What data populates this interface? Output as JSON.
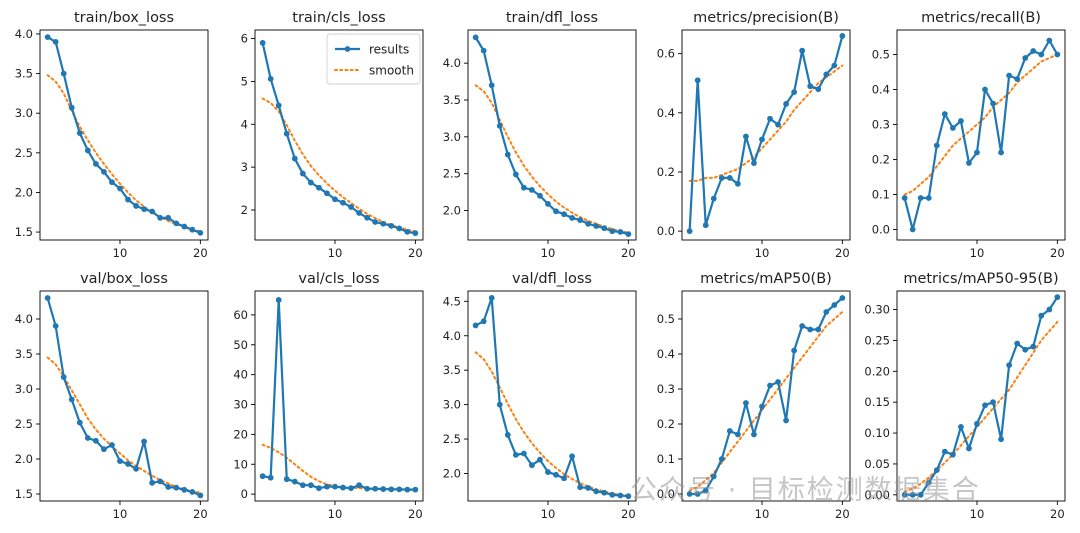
{
  "colors": {
    "results": "#1f77b4",
    "smooth": "#ff7f0e",
    "axis": "#000000",
    "background": "#ffffff"
  },
  "watermark": "公众号 · 目标检测数据集合",
  "chart_data": [
    {
      "type": "line",
      "title": "train/box_loss",
      "ylim": [
        1.4,
        4.05
      ],
      "yticks": [
        1.5,
        2.0,
        2.5,
        3.0,
        3.5,
        4.0
      ],
      "xticks": [
        10,
        20
      ],
      "xlim": [
        0.05,
        20.95
      ],
      "legend": null,
      "series": [
        {
          "name": "results",
          "x": [
            1,
            2,
            3,
            4,
            5,
            6,
            7,
            8,
            9,
            10,
            11,
            12,
            13,
            14,
            15,
            16,
            17,
            18,
            19,
            20
          ],
          "values": [
            3.96,
            3.9,
            3.5,
            3.07,
            2.75,
            2.53,
            2.36,
            2.26,
            2.13,
            2.05,
            1.91,
            1.83,
            1.79,
            1.76,
            1.68,
            1.68,
            1.61,
            1.57,
            1.53,
            1.49
          ]
        },
        {
          "name": "smooth",
          "x": [
            1,
            2,
            3,
            4,
            5,
            6,
            7,
            8,
            9,
            10,
            11,
            12,
            13,
            14,
            15,
            16,
            17,
            18,
            19,
            20
          ],
          "values": [
            3.48,
            3.4,
            3.25,
            3.03,
            2.83,
            2.66,
            2.5,
            2.36,
            2.23,
            2.11,
            2.0,
            1.9,
            1.82,
            1.75,
            1.69,
            1.64,
            1.6,
            1.56,
            1.53,
            1.51
          ]
        }
      ]
    },
    {
      "type": "line",
      "title": "train/cls_loss",
      "ylim": [
        1.3,
        6.2
      ],
      "yticks": [
        2,
        3,
        4,
        5,
        6
      ],
      "xticks": [
        10,
        20
      ],
      "xlim": [
        0.05,
        20.95
      ],
      "legend": {
        "placement": "upper right",
        "entries": [
          "results",
          "smooth"
        ]
      },
      "series": [
        {
          "name": "results",
          "x": [
            1,
            2,
            3,
            4,
            5,
            6,
            7,
            8,
            9,
            10,
            11,
            12,
            13,
            14,
            15,
            16,
            17,
            18,
            19,
            20
          ],
          "values": [
            5.9,
            5.06,
            4.44,
            3.78,
            3.2,
            2.85,
            2.64,
            2.52,
            2.39,
            2.25,
            2.17,
            2.07,
            1.93,
            1.82,
            1.72,
            1.68,
            1.63,
            1.57,
            1.49,
            1.46
          ]
        },
        {
          "name": "smooth",
          "x": [
            1,
            2,
            3,
            4,
            5,
            6,
            7,
            8,
            9,
            10,
            11,
            12,
            13,
            14,
            15,
            16,
            17,
            18,
            19,
            20
          ],
          "values": [
            4.6,
            4.5,
            4.3,
            3.98,
            3.62,
            3.3,
            3.03,
            2.81,
            2.62,
            2.45,
            2.3,
            2.16,
            2.03,
            1.91,
            1.81,
            1.72,
            1.65,
            1.59,
            1.54,
            1.5
          ]
        }
      ]
    },
    {
      "type": "line",
      "title": "train/dfl_loss",
      "ylim": [
        1.6,
        4.45
      ],
      "yticks": [
        2.0,
        2.5,
        3.0,
        3.5,
        4.0
      ],
      "xticks": [
        10,
        20
      ],
      "xlim": [
        0.05,
        20.95
      ],
      "legend": null,
      "series": [
        {
          "name": "results",
          "x": [
            1,
            2,
            3,
            4,
            5,
            6,
            7,
            8,
            9,
            10,
            11,
            12,
            13,
            14,
            15,
            16,
            17,
            18,
            19,
            20
          ],
          "values": [
            4.35,
            4.17,
            3.7,
            3.15,
            2.76,
            2.49,
            2.31,
            2.28,
            2.2,
            2.09,
            1.99,
            1.95,
            1.9,
            1.87,
            1.82,
            1.79,
            1.76,
            1.72,
            1.71,
            1.68
          ]
        },
        {
          "name": "smooth",
          "x": [
            1,
            2,
            3,
            4,
            5,
            6,
            7,
            8,
            9,
            10,
            11,
            12,
            13,
            14,
            15,
            16,
            17,
            18,
            19,
            20
          ],
          "values": [
            3.7,
            3.62,
            3.46,
            3.23,
            3.0,
            2.79,
            2.61,
            2.46,
            2.33,
            2.22,
            2.12,
            2.04,
            1.97,
            1.91,
            1.86,
            1.82,
            1.78,
            1.75,
            1.72,
            1.7
          ]
        }
      ]
    },
    {
      "type": "line",
      "title": "metrics/precision(B)",
      "ylim": [
        -0.03,
        0.68
      ],
      "yticks": [
        0.0,
        0.2,
        0.4,
        0.6
      ],
      "xticks": [
        10,
        20
      ],
      "xlim": [
        0.05,
        20.95
      ],
      "legend": null,
      "series": [
        {
          "name": "results",
          "x": [
            1,
            2,
            3,
            4,
            5,
            6,
            7,
            8,
            9,
            10,
            11,
            12,
            13,
            14,
            15,
            16,
            17,
            18,
            19,
            20
          ],
          "values": [
            0.0,
            0.51,
            0.02,
            0.11,
            0.18,
            0.18,
            0.16,
            0.32,
            0.23,
            0.31,
            0.38,
            0.36,
            0.43,
            0.47,
            0.61,
            0.49,
            0.48,
            0.53,
            0.56,
            0.66
          ]
        },
        {
          "name": "smooth",
          "x": [
            1,
            2,
            3,
            4,
            5,
            6,
            7,
            8,
            9,
            10,
            11,
            12,
            13,
            14,
            15,
            16,
            17,
            18,
            19,
            20
          ],
          "values": [
            0.17,
            0.17,
            0.18,
            0.18,
            0.19,
            0.2,
            0.21,
            0.23,
            0.25,
            0.28,
            0.31,
            0.34,
            0.37,
            0.41,
            0.44,
            0.47,
            0.5,
            0.52,
            0.54,
            0.56
          ]
        }
      ]
    },
    {
      "type": "line",
      "title": "metrics/recall(B)",
      "ylim": [
        -0.03,
        0.57
      ],
      "yticks": [
        0.0,
        0.1,
        0.2,
        0.3,
        0.4,
        0.5
      ],
      "xticks": [
        10,
        20
      ],
      "xlim": [
        0.05,
        20.95
      ],
      "legend": null,
      "series": [
        {
          "name": "results",
          "x": [
            1,
            2,
            3,
            4,
            5,
            6,
            7,
            8,
            9,
            10,
            11,
            12,
            13,
            14,
            15,
            16,
            17,
            18,
            19,
            20
          ],
          "values": [
            0.09,
            0.0,
            0.09,
            0.09,
            0.24,
            0.33,
            0.29,
            0.31,
            0.19,
            0.22,
            0.4,
            0.36,
            0.22,
            0.44,
            0.43,
            0.49,
            0.51,
            0.5,
            0.54,
            0.5
          ]
        },
        {
          "name": "smooth",
          "x": [
            1,
            2,
            3,
            4,
            5,
            6,
            7,
            8,
            9,
            10,
            11,
            12,
            13,
            14,
            15,
            16,
            17,
            18,
            19,
            20
          ],
          "values": [
            0.1,
            0.11,
            0.13,
            0.15,
            0.18,
            0.21,
            0.24,
            0.26,
            0.28,
            0.3,
            0.32,
            0.35,
            0.37,
            0.39,
            0.42,
            0.44,
            0.46,
            0.48,
            0.49,
            0.5
          ]
        }
      ]
    },
    {
      "type": "line",
      "title": "val/box_loss",
      "ylim": [
        1.4,
        4.4
      ],
      "yticks": [
        1.5,
        2.0,
        2.5,
        3.0,
        3.5,
        4.0
      ],
      "xticks": [
        10,
        20
      ],
      "xlim": [
        0.05,
        20.95
      ],
      "legend": null,
      "series": [
        {
          "name": "results",
          "x": [
            1,
            2,
            3,
            4,
            5,
            6,
            7,
            8,
            9,
            10,
            11,
            12,
            13,
            14,
            15,
            16,
            17,
            18,
            19,
            20
          ],
          "values": [
            4.3,
            3.9,
            3.17,
            2.85,
            2.52,
            2.3,
            2.26,
            2.14,
            2.2,
            1.97,
            1.93,
            1.86,
            2.25,
            1.66,
            1.68,
            1.6,
            1.59,
            1.56,
            1.53,
            1.48
          ]
        },
        {
          "name": "smooth",
          "x": [
            1,
            2,
            3,
            4,
            5,
            6,
            7,
            8,
            9,
            10,
            11,
            12,
            13,
            14,
            15,
            16,
            17,
            18,
            19,
            20
          ],
          "values": [
            3.45,
            3.35,
            3.18,
            2.98,
            2.78,
            2.58,
            2.42,
            2.29,
            2.18,
            2.08,
            1.98,
            1.9,
            1.83,
            1.76,
            1.7,
            1.65,
            1.6,
            1.57,
            1.54,
            1.52
          ]
        }
      ]
    },
    {
      "type": "line",
      "title": "val/cls_loss",
      "ylim": [
        -2.3,
        68
      ],
      "yticks": [
        0,
        10,
        20,
        30,
        40,
        50,
        60
      ],
      "xticks": [
        10,
        20
      ],
      "xlim": [
        0.05,
        20.95
      ],
      "legend": null,
      "series": [
        {
          "name": "results",
          "x": [
            1,
            2,
            3,
            4,
            5,
            6,
            7,
            8,
            9,
            10,
            11,
            12,
            13,
            14,
            15,
            16,
            17,
            18,
            19,
            20
          ],
          "values": [
            6.0,
            5.5,
            65.0,
            5.0,
            4.2,
            3.0,
            3.0,
            2.0,
            2.5,
            2.5,
            2.2,
            2.0,
            3.0,
            1.8,
            1.8,
            1.7,
            1.6,
            1.6,
            1.5,
            1.5
          ]
        },
        {
          "name": "smooth",
          "x": [
            1,
            2,
            3,
            4,
            5,
            6,
            7,
            8,
            9,
            10,
            11,
            12,
            13,
            14,
            15,
            16,
            17,
            18,
            19,
            20
          ],
          "values": [
            16.5,
            15.5,
            14.0,
            12.2,
            10.0,
            7.8,
            5.8,
            4.3,
            3.3,
            2.7,
            2.3,
            2.1,
            2.0,
            1.9,
            1.8,
            1.7,
            1.7,
            1.6,
            1.6,
            1.6
          ]
        }
      ]
    },
    {
      "type": "line",
      "title": "val/dfl_loss",
      "ylim": [
        1.6,
        4.65
      ],
      "yticks": [
        2.0,
        2.5,
        3.0,
        3.5,
        4.0,
        4.5
      ],
      "xticks": [
        10,
        20
      ],
      "xlim": [
        0.05,
        20.95
      ],
      "legend": null,
      "series": [
        {
          "name": "results",
          "x": [
            1,
            2,
            3,
            4,
            5,
            6,
            7,
            8,
            9,
            10,
            11,
            12,
            13,
            14,
            15,
            16,
            17,
            18,
            19,
            20
          ],
          "values": [
            4.15,
            4.21,
            4.55,
            3.0,
            2.56,
            2.27,
            2.29,
            2.12,
            2.2,
            2.02,
            1.98,
            1.93,
            2.25,
            1.8,
            1.79,
            1.74,
            1.72,
            1.69,
            1.68,
            1.67
          ]
        },
        {
          "name": "smooth",
          "x": [
            1,
            2,
            3,
            4,
            5,
            6,
            7,
            8,
            9,
            10,
            11,
            12,
            13,
            14,
            15,
            16,
            17,
            18,
            19,
            20
          ],
          "values": [
            3.76,
            3.66,
            3.48,
            3.25,
            3.01,
            2.79,
            2.6,
            2.44,
            2.3,
            2.18,
            2.08,
            1.99,
            1.92,
            1.86,
            1.81,
            1.77,
            1.74,
            1.71,
            1.69,
            1.68
          ]
        }
      ]
    },
    {
      "type": "line",
      "title": "metrics/mAP50(B)",
      "ylim": [
        -0.02,
        0.58
      ],
      "yticks": [
        0.0,
        0.1,
        0.2,
        0.3,
        0.4,
        0.5
      ],
      "xticks": [
        10,
        20
      ],
      "xlim": [
        0.05,
        20.95
      ],
      "legend": null,
      "series": [
        {
          "name": "results",
          "x": [
            1,
            2,
            3,
            4,
            5,
            6,
            7,
            8,
            9,
            10,
            11,
            12,
            13,
            14,
            15,
            16,
            17,
            18,
            19,
            20
          ],
          "values": [
            0.0,
            0.0,
            0.01,
            0.05,
            0.1,
            0.18,
            0.17,
            0.26,
            0.17,
            0.25,
            0.31,
            0.32,
            0.21,
            0.41,
            0.48,
            0.47,
            0.47,
            0.52,
            0.54,
            0.56
          ]
        },
        {
          "name": "smooth",
          "x": [
            1,
            2,
            3,
            4,
            5,
            6,
            7,
            8,
            9,
            10,
            11,
            12,
            13,
            14,
            15,
            16,
            17,
            18,
            19,
            20
          ],
          "values": [
            0.01,
            0.02,
            0.04,
            0.06,
            0.09,
            0.12,
            0.15,
            0.18,
            0.21,
            0.24,
            0.27,
            0.3,
            0.33,
            0.36,
            0.39,
            0.42,
            0.45,
            0.48,
            0.5,
            0.52
          ]
        }
      ]
    },
    {
      "type": "line",
      "title": "metrics/mAP50-95(B)",
      "ylim": [
        -0.01,
        0.33
      ],
      "yticks": [
        0.0,
        0.05,
        0.1,
        0.15,
        0.2,
        0.25,
        0.3
      ],
      "xticks": [
        10,
        20
      ],
      "xlim": [
        0.05,
        20.95
      ],
      "legend": null,
      "series": [
        {
          "name": "results",
          "x": [
            1,
            2,
            3,
            4,
            5,
            6,
            7,
            8,
            9,
            10,
            11,
            12,
            13,
            14,
            15,
            16,
            17,
            18,
            19,
            20
          ],
          "values": [
            0.0,
            0.0,
            0.0,
            0.02,
            0.04,
            0.07,
            0.065,
            0.11,
            0.075,
            0.115,
            0.145,
            0.15,
            0.09,
            0.21,
            0.245,
            0.235,
            0.24,
            0.29,
            0.3,
            0.32
          ]
        },
        {
          "name": "smooth",
          "x": [
            1,
            2,
            3,
            4,
            5,
            6,
            7,
            8,
            9,
            10,
            11,
            12,
            13,
            14,
            15,
            16,
            17,
            18,
            19,
            20
          ],
          "values": [
            0.005,
            0.01,
            0.018,
            0.028,
            0.04,
            0.052,
            0.065,
            0.08,
            0.095,
            0.11,
            0.125,
            0.14,
            0.155,
            0.17,
            0.19,
            0.21,
            0.23,
            0.25,
            0.265,
            0.28
          ]
        }
      ]
    }
  ]
}
